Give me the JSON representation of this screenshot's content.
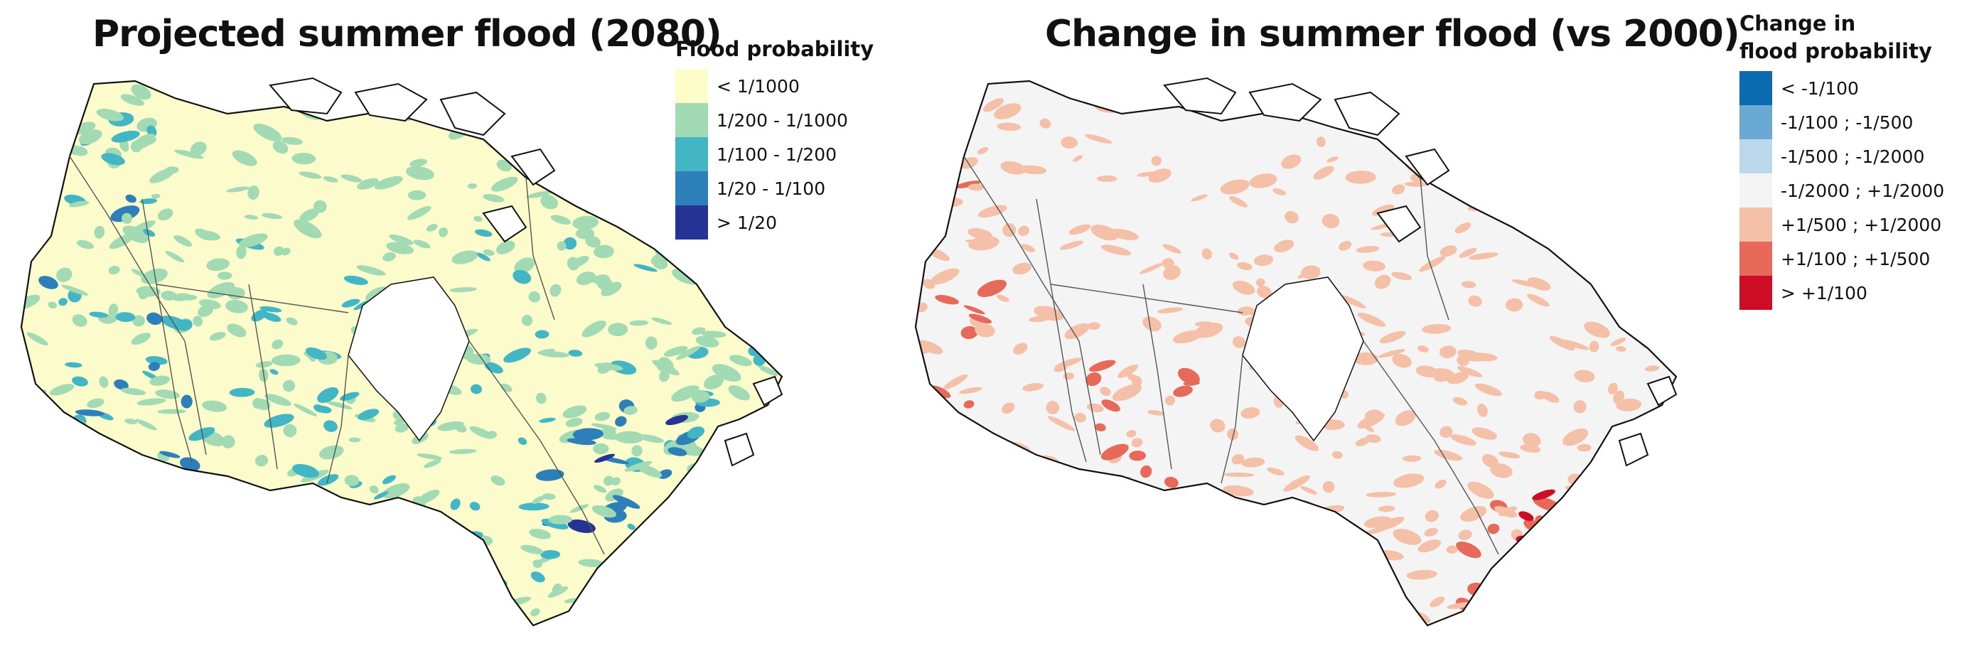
{
  "left_map": {
    "title": "Projected summer flood (2080)",
    "legend_title": "Flood probability",
    "base_color": "#fbfbcc",
    "legend": [
      {
        "label": "< 1/1000",
        "color": "#fdfdc9"
      },
      {
        "label": "1/200 - 1/1000",
        "color": "#a2dab4"
      },
      {
        "label": "1/100 - 1/200",
        "color": "#42b6c5"
      },
      {
        "label": "1/20 - 1/100",
        "color": "#2c7fb8"
      },
      {
        "label": "> 1/20",
        "color": "#253494"
      }
    ]
  },
  "right_map": {
    "title": "Change in summer flood (vs 2000)",
    "legend_title_lines": [
      "Change in",
      "flood probability"
    ],
    "base_color": "#f4f4f4",
    "legend": [
      {
        "label": "< -1/100",
        "color": "#0b6bb1"
      },
      {
        "label": "-1/100 ; -1/500",
        "color": "#6aa9d3"
      },
      {
        "label": "-1/500 ; -1/2000",
        "color": "#bcd8ec"
      },
      {
        "label": "-1/2000 ; +1/2000",
        "color": "#f4f4f4"
      },
      {
        "label": "+1/500 ; +1/2000",
        "color": "#f5c0a8"
      },
      {
        "label": "+1/100 ; +1/500",
        "color": "#e6695a"
      },
      {
        "label": "> +1/100",
        "color": "#cc0d25"
      }
    ]
  }
}
